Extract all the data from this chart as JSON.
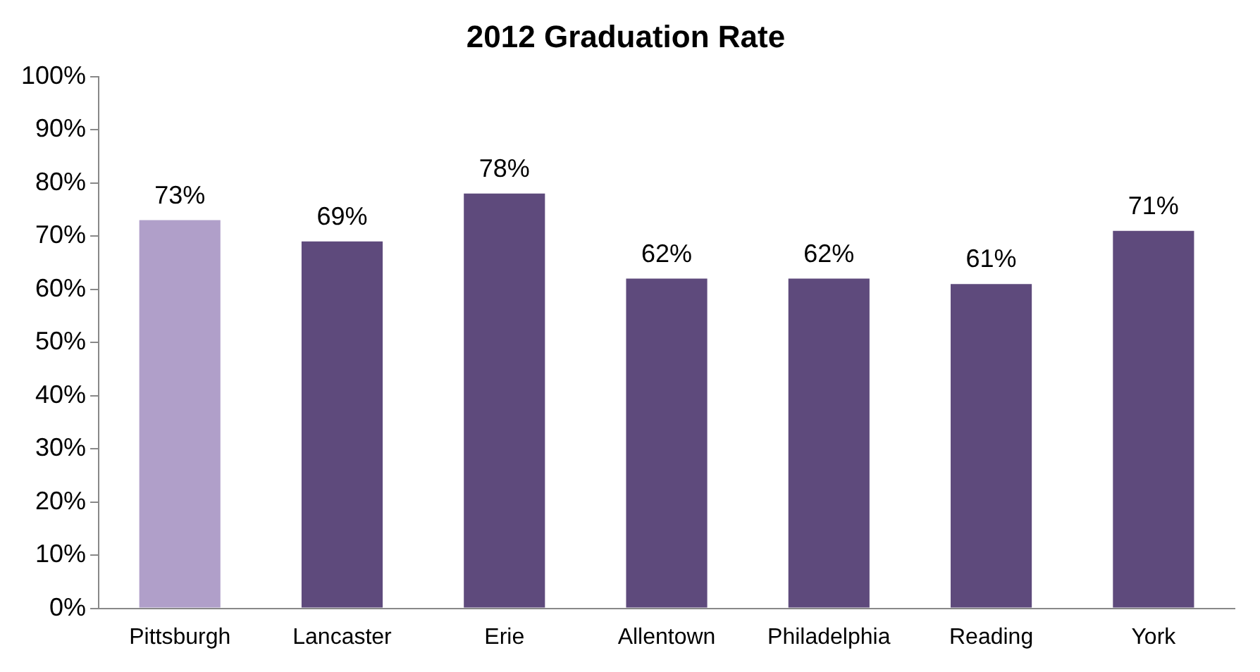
{
  "chart_data": {
    "type": "bar",
    "title": "2012 Graduation Rate",
    "categories": [
      "Pittsburgh",
      "Lancaster",
      "Erie",
      "Allentown",
      "Philadelphia",
      "Reading",
      "York"
    ],
    "values": [
      73,
      69,
      78,
      62,
      62,
      61,
      71
    ],
    "value_labels": [
      "73%",
      "69%",
      "78%",
      "62%",
      "62%",
      "61%",
      "71%"
    ],
    "colors": [
      "#b09fc9",
      "#5e4a7c",
      "#5e4a7c",
      "#5e4a7c",
      "#5e4a7c",
      "#5e4a7c",
      "#5e4a7c"
    ],
    "ylim": [
      0,
      100
    ],
    "yticks": [
      {
        "value": 0,
        "label": "0%"
      },
      {
        "value": 10,
        "label": "10%"
      },
      {
        "value": 20,
        "label": "20%"
      },
      {
        "value": 30,
        "label": "30%"
      },
      {
        "value": 40,
        "label": "40%"
      },
      {
        "value": 50,
        "label": "50%"
      },
      {
        "value": 60,
        "label": "60%"
      },
      {
        "value": 70,
        "label": "70%"
      },
      {
        "value": 80,
        "label": "80%"
      },
      {
        "value": 90,
        "label": "90%"
      },
      {
        "value": 100,
        "label": "100%"
      }
    ],
    "grid": false,
    "legend": false
  }
}
